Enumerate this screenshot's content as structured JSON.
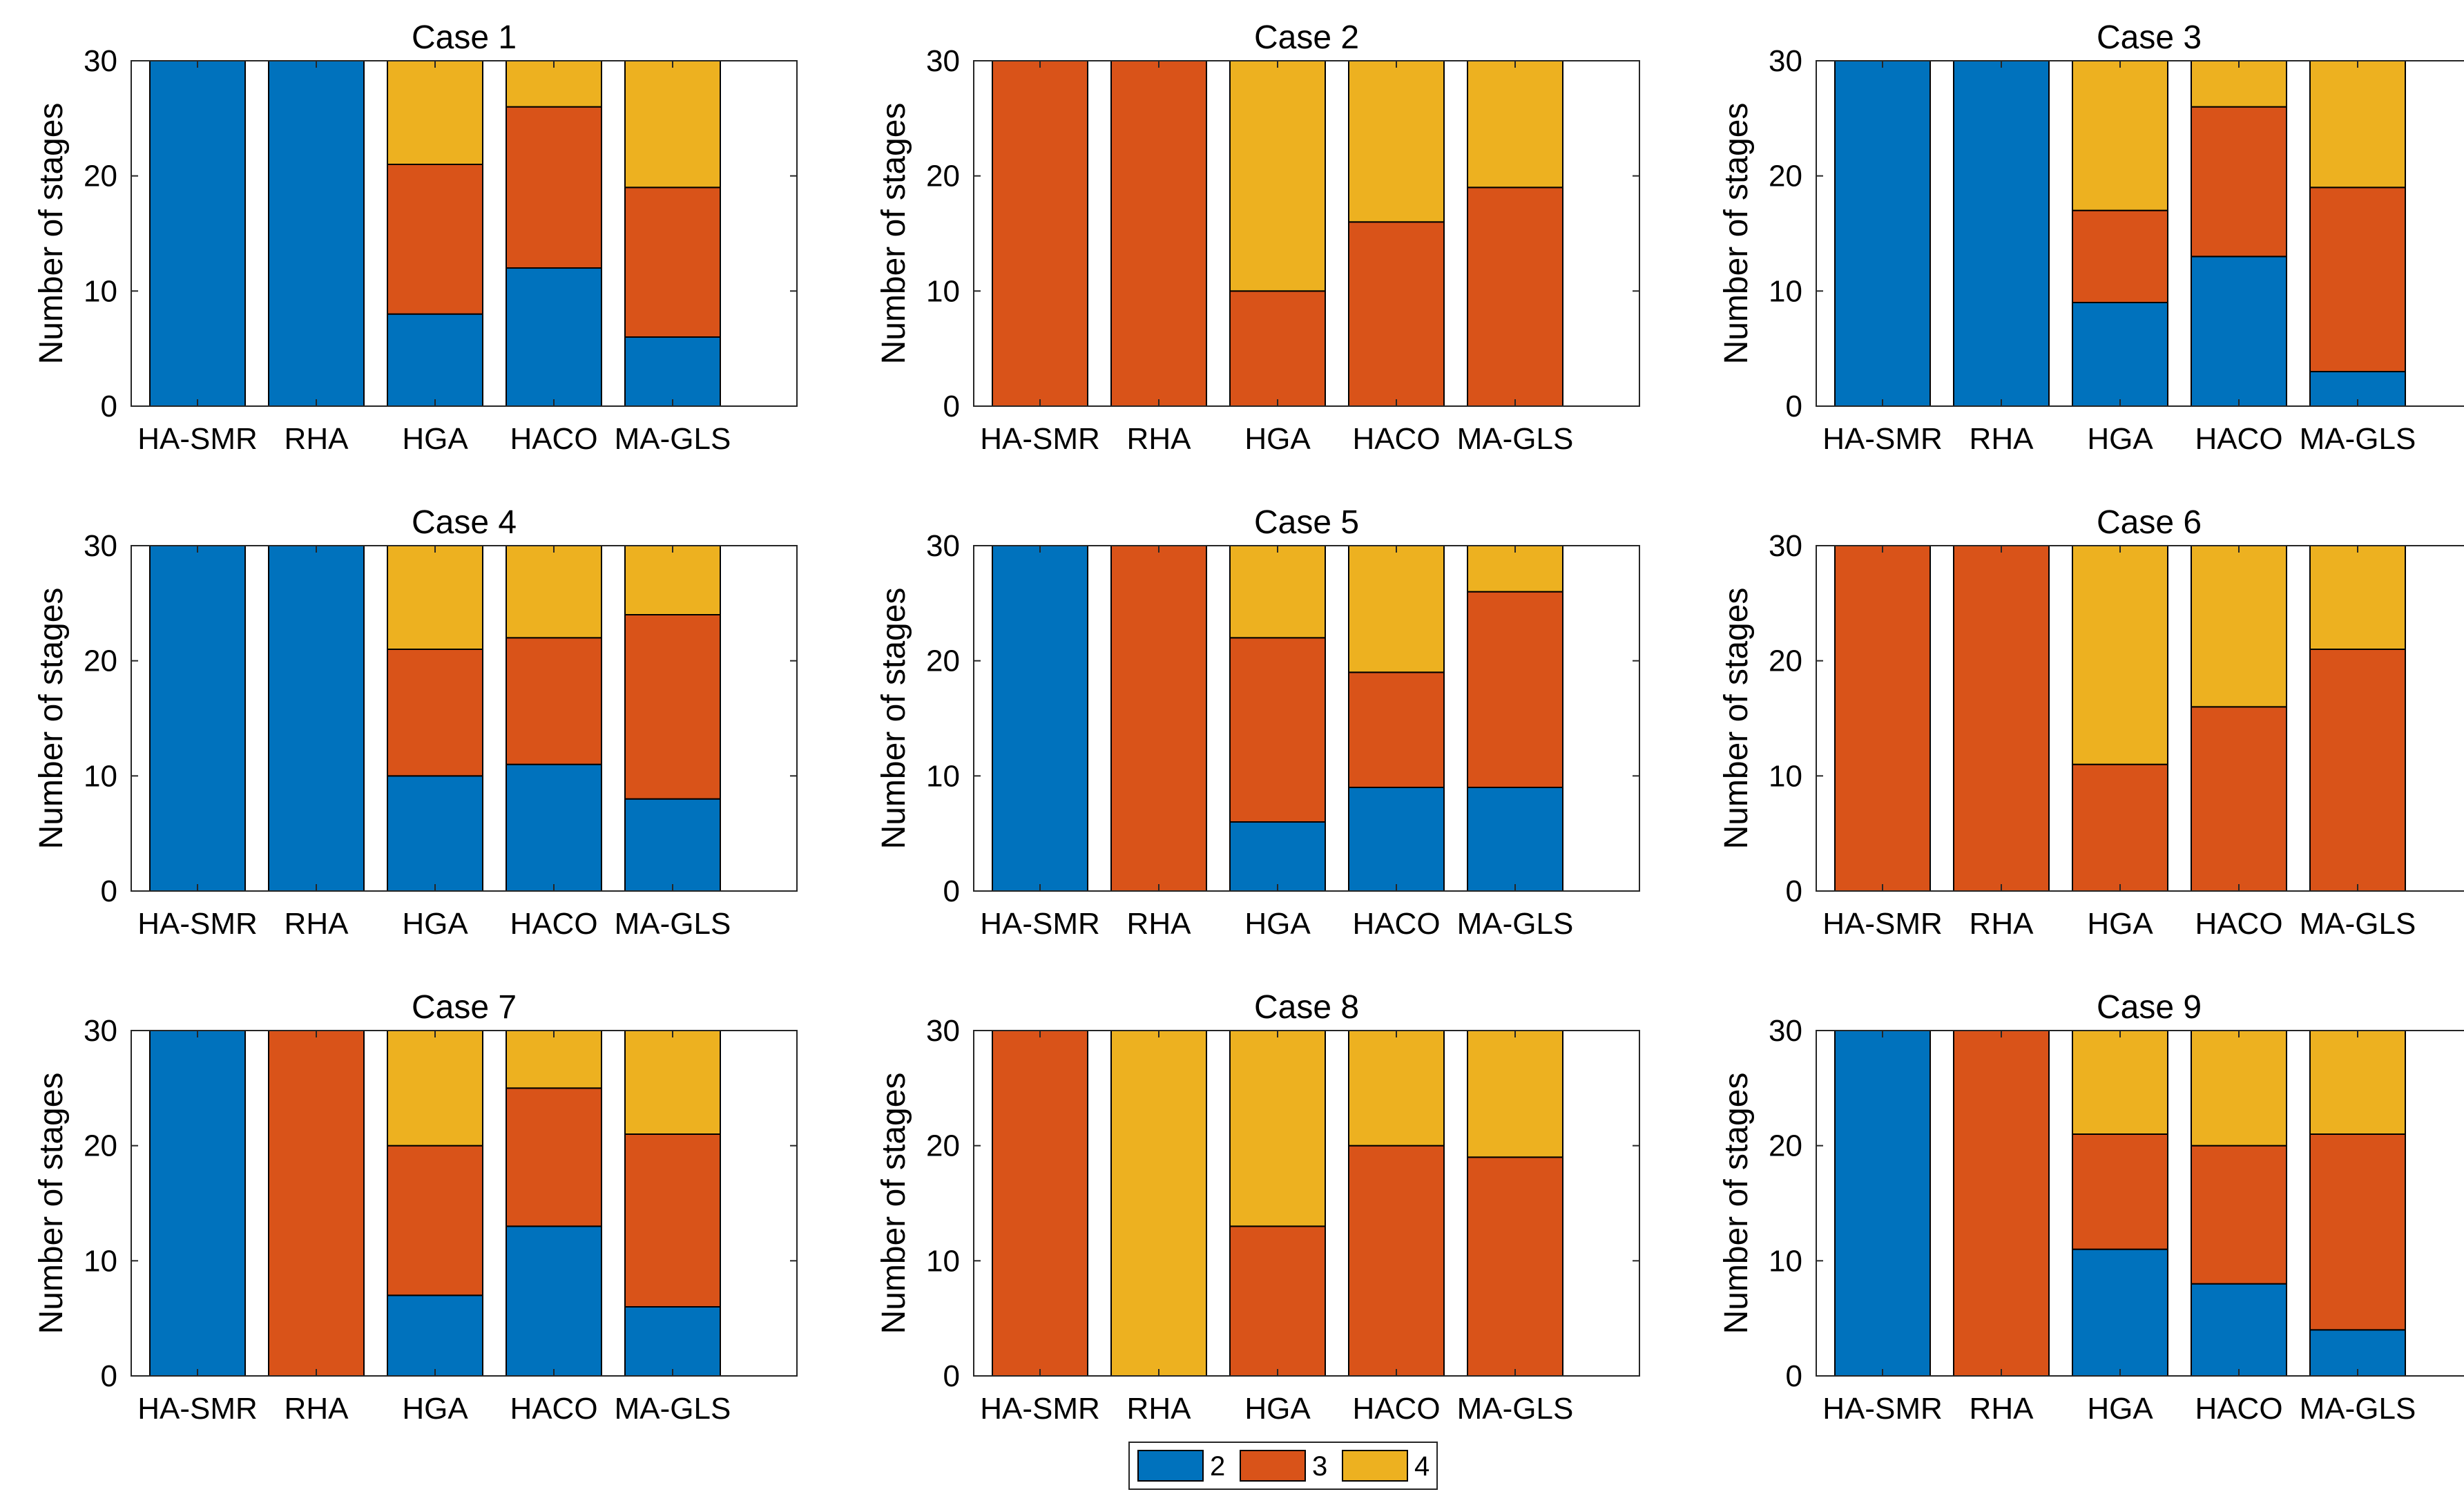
{
  "legend": {
    "items": [
      {
        "label": "2",
        "color": "#0072BD"
      },
      {
        "label": "3",
        "color": "#D95319"
      },
      {
        "label": "4",
        "color": "#EDB120"
      }
    ]
  },
  "chart_data": [
    {
      "type": "bar",
      "stacked": true,
      "title": "Case 1",
      "ylabel": "Number of stages",
      "xlabel": "",
      "categories": [
        "HA-SMR",
        "RHA",
        "HGA",
        "HACO",
        "MA-GLS"
      ],
      "ylim": [
        0,
        30
      ],
      "yticks": [
        0,
        10,
        20,
        30
      ],
      "series": [
        {
          "name": "2",
          "values": [
            30,
            30,
            8,
            12,
            6
          ]
        },
        {
          "name": "3",
          "values": [
            0,
            0,
            13,
            14,
            13
          ]
        },
        {
          "name": "4",
          "values": [
            0,
            0,
            9,
            4,
            11
          ]
        }
      ]
    },
    {
      "type": "bar",
      "stacked": true,
      "title": "Case 2",
      "ylabel": "Number of stages",
      "xlabel": "",
      "categories": [
        "HA-SMR",
        "RHA",
        "HGA",
        "HACO",
        "MA-GLS"
      ],
      "ylim": [
        0,
        30
      ],
      "yticks": [
        0,
        10,
        20,
        30
      ],
      "series": [
        {
          "name": "2",
          "values": [
            0,
            0,
            0,
            0,
            0
          ]
        },
        {
          "name": "3",
          "values": [
            30,
            30,
            10,
            16,
            19
          ]
        },
        {
          "name": "4",
          "values": [
            0,
            0,
            20,
            14,
            11
          ]
        }
      ]
    },
    {
      "type": "bar",
      "stacked": true,
      "title": "Case 3",
      "ylabel": "Number of stages",
      "xlabel": "",
      "categories": [
        "HA-SMR",
        "RHA",
        "HGA",
        "HACO",
        "MA-GLS"
      ],
      "ylim": [
        0,
        30
      ],
      "yticks": [
        0,
        10,
        20,
        30
      ],
      "series": [
        {
          "name": "2",
          "values": [
            30,
            30,
            9,
            13,
            3
          ]
        },
        {
          "name": "3",
          "values": [
            0,
            0,
            8,
            13,
            16
          ]
        },
        {
          "name": "4",
          "values": [
            0,
            0,
            13,
            4,
            11
          ]
        }
      ]
    },
    {
      "type": "bar",
      "stacked": true,
      "title": "Case 4",
      "ylabel": "Number of stages",
      "xlabel": "",
      "categories": [
        "HA-SMR",
        "RHA",
        "HGA",
        "HACO",
        "MA-GLS"
      ],
      "ylim": [
        0,
        30
      ],
      "yticks": [
        0,
        10,
        20,
        30
      ],
      "series": [
        {
          "name": "2",
          "values": [
            30,
            30,
            10,
            11,
            8
          ]
        },
        {
          "name": "3",
          "values": [
            0,
            0,
            11,
            11,
            16
          ]
        },
        {
          "name": "4",
          "values": [
            0,
            0,
            9,
            8,
            6
          ]
        }
      ]
    },
    {
      "type": "bar",
      "stacked": true,
      "title": "Case 5",
      "ylabel": "Number of stages",
      "xlabel": "",
      "categories": [
        "HA-SMR",
        "RHA",
        "HGA",
        "HACO",
        "MA-GLS"
      ],
      "ylim": [
        0,
        30
      ],
      "yticks": [
        0,
        10,
        20,
        30
      ],
      "series": [
        {
          "name": "2",
          "values": [
            30,
            0,
            6,
            9,
            9
          ]
        },
        {
          "name": "3",
          "values": [
            0,
            30,
            16,
            10,
            17
          ]
        },
        {
          "name": "4",
          "values": [
            0,
            0,
            8,
            11,
            4
          ]
        }
      ]
    },
    {
      "type": "bar",
      "stacked": true,
      "title": "Case 6",
      "ylabel": "Number of stages",
      "xlabel": "",
      "categories": [
        "HA-SMR",
        "RHA",
        "HGA",
        "HACO",
        "MA-GLS"
      ],
      "ylim": [
        0,
        30
      ],
      "yticks": [
        0,
        10,
        20,
        30
      ],
      "series": [
        {
          "name": "2",
          "values": [
            0,
            0,
            0,
            0,
            0
          ]
        },
        {
          "name": "3",
          "values": [
            30,
            30,
            11,
            16,
            21
          ]
        },
        {
          "name": "4",
          "values": [
            0,
            0,
            19,
            14,
            9
          ]
        }
      ]
    },
    {
      "type": "bar",
      "stacked": true,
      "title": "Case 7",
      "ylabel": "Number of stages",
      "xlabel": "",
      "categories": [
        "HA-SMR",
        "RHA",
        "HGA",
        "HACO",
        "MA-GLS"
      ],
      "ylim": [
        0,
        30
      ],
      "yticks": [
        0,
        10,
        20,
        30
      ],
      "series": [
        {
          "name": "2",
          "values": [
            30,
            0,
            7,
            13,
            6
          ]
        },
        {
          "name": "3",
          "values": [
            0,
            30,
            13,
            12,
            15
          ]
        },
        {
          "name": "4",
          "values": [
            0,
            0,
            10,
            5,
            9
          ]
        }
      ]
    },
    {
      "type": "bar",
      "stacked": true,
      "title": "Case 8",
      "ylabel": "Number of stages",
      "xlabel": "",
      "categories": [
        "HA-SMR",
        "RHA",
        "HGA",
        "HACO",
        "MA-GLS"
      ],
      "ylim": [
        0,
        30
      ],
      "yticks": [
        0,
        10,
        20,
        30
      ],
      "series": [
        {
          "name": "2",
          "values": [
            0,
            0,
            0,
            0,
            0
          ]
        },
        {
          "name": "3",
          "values": [
            30,
            0,
            13,
            20,
            19
          ]
        },
        {
          "name": "4",
          "values": [
            0,
            30,
            17,
            10,
            11
          ]
        }
      ]
    },
    {
      "type": "bar",
      "stacked": true,
      "title": "Case 9",
      "ylabel": "Number of stages",
      "xlabel": "",
      "categories": [
        "HA-SMR",
        "RHA",
        "HGA",
        "HACO",
        "MA-GLS"
      ],
      "ylim": [
        0,
        30
      ],
      "yticks": [
        0,
        10,
        20,
        30
      ],
      "series": [
        {
          "name": "2",
          "values": [
            30,
            0,
            11,
            8,
            4
          ]
        },
        {
          "name": "3",
          "values": [
            0,
            30,
            10,
            12,
            17
          ]
        },
        {
          "name": "4",
          "values": [
            0,
            0,
            9,
            10,
            9
          ]
        }
      ]
    }
  ]
}
